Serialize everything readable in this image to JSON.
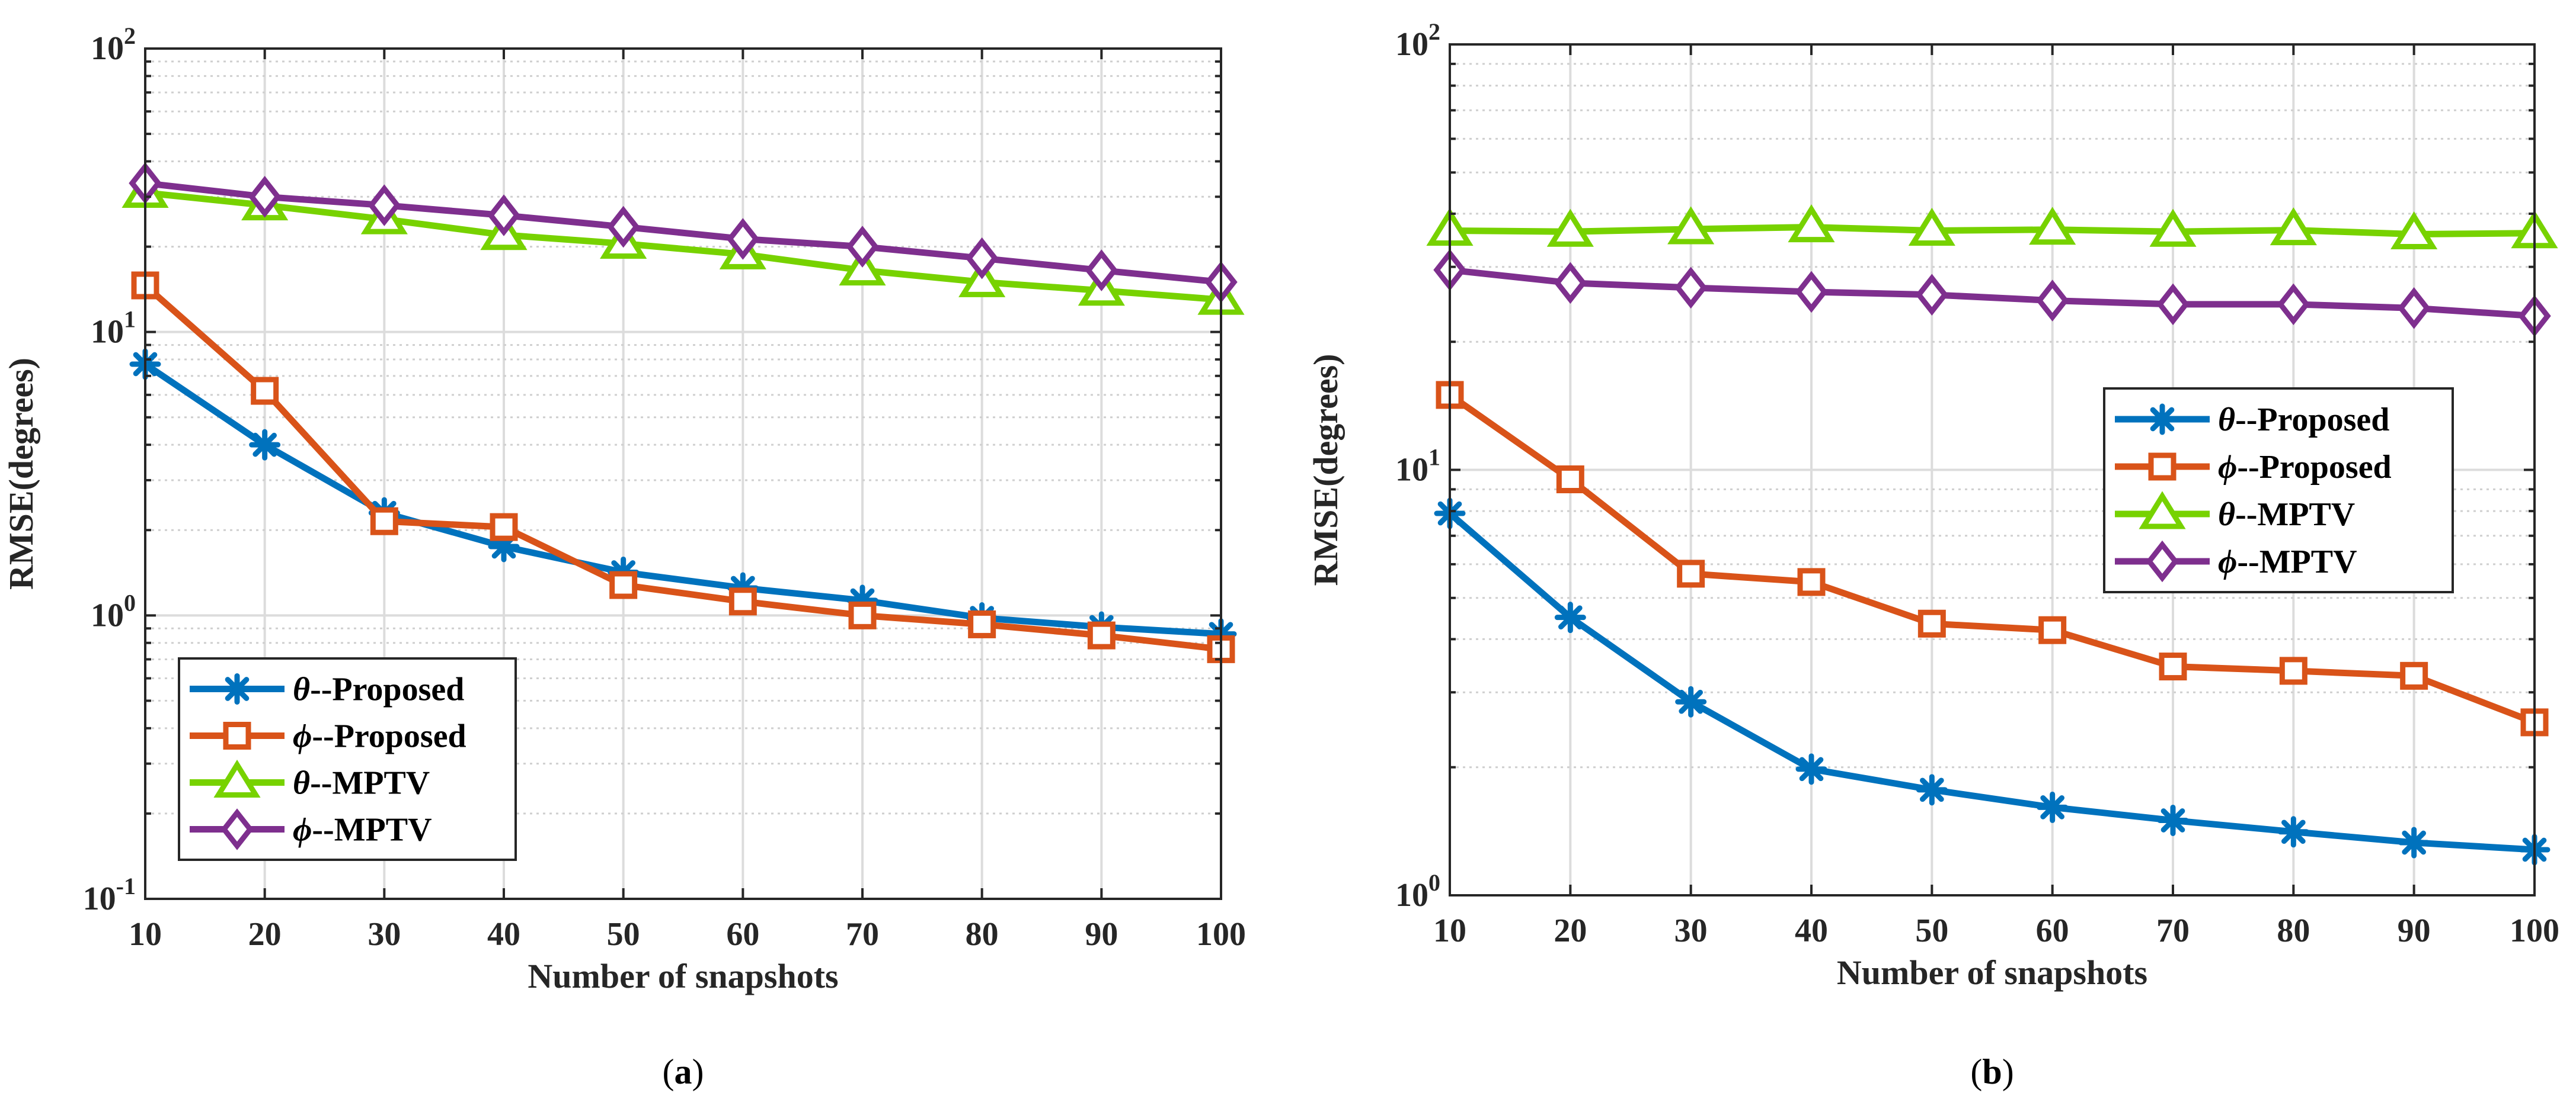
{
  "chart_data": [
    {
      "type": "line",
      "panel_label": "a",
      "xlabel": "Number of snapshots",
      "ylabel": "RMSE(degrees)",
      "yscale": "log",
      "xlim": [
        10,
        100
      ],
      "ylim": [
        0.1,
        100
      ],
      "x": [
        10,
        20,
        30,
        40,
        50,
        60,
        70,
        80,
        90,
        100
      ],
      "x_tick_labels": [
        "10",
        "20",
        "30",
        "40",
        "50",
        "60",
        "70",
        "80",
        "90",
        "100"
      ],
      "y_ticks": [
        {
          "base": "10",
          "exp": "-1"
        },
        {
          "base": "10",
          "exp": "0"
        },
        {
          "base": "10",
          "exp": "1"
        },
        {
          "base": "10",
          "exp": "2"
        }
      ],
      "grid": true,
      "legend_position": "bottom-left",
      "series": [
        {
          "sym": "θ",
          "suffix": "--Proposed",
          "color": "#0072BD",
          "marker": "asterisk",
          "values": [
            7.7,
            4.0,
            2.3,
            1.75,
            1.42,
            1.25,
            1.13,
            0.98,
            0.91,
            0.86
          ]
        },
        {
          "sym": "ϕ",
          "suffix": "--Proposed",
          "color": "#D95319",
          "marker": "square",
          "values": [
            14.6,
            6.2,
            2.15,
            2.05,
            1.28,
            1.12,
            1.0,
            0.93,
            0.85,
            0.76
          ]
        },
        {
          "sym": "θ",
          "suffix": "--MPTV",
          "color": "#77D200",
          "marker": "triangle",
          "values": [
            31.0,
            28.0,
            25.0,
            22.0,
            20.5,
            18.8,
            16.5,
            15.0,
            14.0,
            13.0
          ]
        },
        {
          "sym": "ϕ",
          "suffix": "--MPTV",
          "color": "#7E2F8E",
          "marker": "diamond",
          "values": [
            33.5,
            30.0,
            28.0,
            25.8,
            23.5,
            21.3,
            20.0,
            18.2,
            16.5,
            15.0
          ]
        }
      ]
    },
    {
      "type": "line",
      "panel_label": "b",
      "xlabel": "Number of snapshots",
      "ylabel": "RMSE(degrees)",
      "yscale": "log",
      "xlim": [
        10,
        100
      ],
      "ylim": [
        1,
        100
      ],
      "x": [
        10,
        20,
        30,
        40,
        50,
        60,
        70,
        80,
        90,
        100
      ],
      "x_tick_labels": [
        "10",
        "20",
        "30",
        "40",
        "50",
        "60",
        "70",
        "80",
        "90",
        "100"
      ],
      "y_ticks": [
        {
          "base": "10",
          "exp": "0"
        },
        {
          "base": "10",
          "exp": "1"
        },
        {
          "base": "10",
          "exp": "2"
        }
      ],
      "grid": true,
      "legend_position": "center-right",
      "series": [
        {
          "sym": "θ",
          "suffix": "--Proposed",
          "color": "#0072BD",
          "marker": "asterisk",
          "values": [
            7.9,
            4.5,
            2.85,
            1.98,
            1.77,
            1.61,
            1.5,
            1.41,
            1.33,
            1.28
          ]
        },
        {
          "sym": "ϕ",
          "suffix": "--Proposed",
          "color": "#D95319",
          "marker": "square",
          "values": [
            15.0,
            9.5,
            5.7,
            5.45,
            4.35,
            4.2,
            3.45,
            3.37,
            3.28,
            2.55
          ]
        },
        {
          "sym": "θ",
          "suffix": "--MPTV",
          "color": "#77D200",
          "marker": "triangle",
          "values": [
            36.5,
            36.3,
            36.8,
            37.2,
            36.5,
            36.7,
            36.3,
            36.6,
            35.8,
            36.0
          ]
        },
        {
          "sym": "ϕ",
          "suffix": "--MPTV",
          "color": "#7E2F8E",
          "marker": "diamond",
          "values": [
            29.5,
            27.5,
            26.8,
            26.2,
            25.8,
            25.0,
            24.5,
            24.5,
            24.0,
            23.0
          ]
        }
      ]
    }
  ]
}
